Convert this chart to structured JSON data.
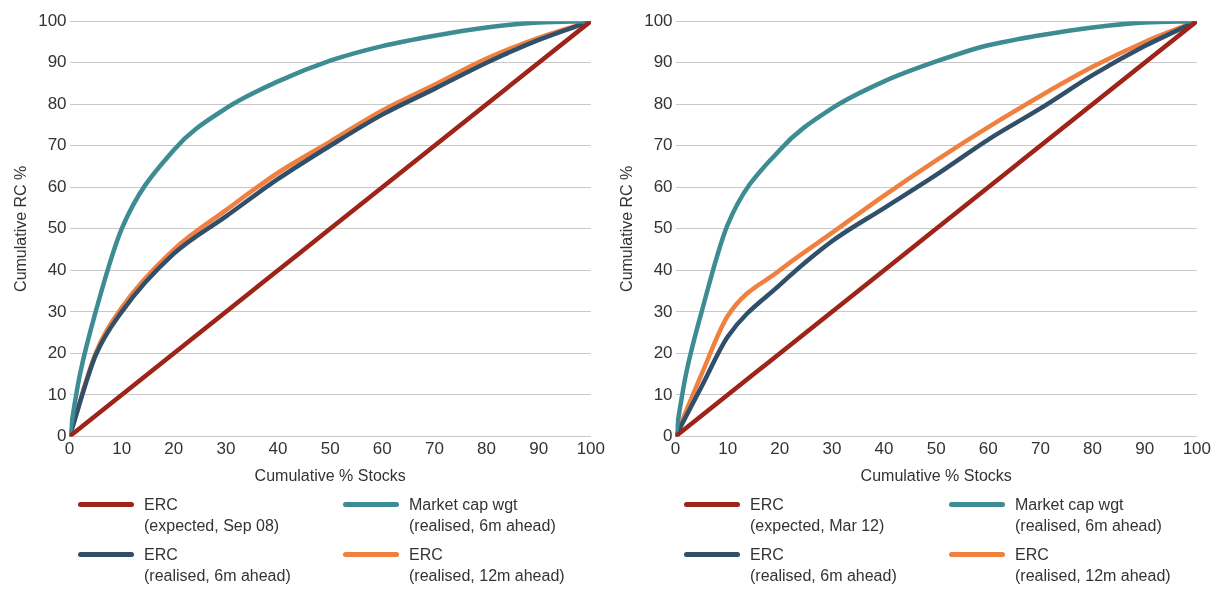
{
  "chart_data": [
    {
      "type": "line",
      "xlabel": "Cumulative % Stocks",
      "ylabel": "Cumulative RC %",
      "xlim": [
        0,
        100
      ],
      "ylim": [
        0,
        100
      ],
      "xticks": [
        0,
        10,
        20,
        30,
        40,
        50,
        60,
        70,
        80,
        90,
        100
      ],
      "yticks": [
        0,
        10,
        20,
        30,
        40,
        50,
        60,
        70,
        80,
        90,
        100
      ],
      "grid": "y",
      "legend": "bottom",
      "marker": "none",
      "line_style": "solid",
      "series": [
        {
          "name": "ERC\n(expected, Sep 08)",
          "color": "#9e2318",
          "x": [
            0,
            100
          ],
          "values": [
            0,
            100
          ]
        },
        {
          "name": "Market cap wgt\n(realised, 6m ahead)",
          "color": "#3e8c93",
          "x": [
            0,
            1,
            2,
            5,
            10,
            20,
            30,
            40,
            50,
            60,
            70,
            80,
            90,
            100
          ],
          "values": [
            0,
            8,
            15,
            30,
            50,
            69,
            79,
            85.5,
            90.5,
            94,
            96.5,
            98.5,
            99.7,
            100
          ]
        },
        {
          "name": "ERC\n(realised, 6m ahead)",
          "color": "#2f4f6b",
          "x": [
            0,
            5,
            10,
            20,
            30,
            40,
            50,
            60,
            70,
            80,
            90,
            100
          ],
          "values": [
            0,
            19.5,
            30,
            44,
            53,
            62,
            70,
            77.5,
            83.7,
            90,
            95.5,
            100
          ]
        },
        {
          "name": "ERC\n(realised, 12m ahead)",
          "color": "#f08040",
          "x": [
            0,
            5,
            10,
            20,
            30,
            40,
            50,
            60,
            70,
            80,
            90,
            100
          ],
          "values": [
            0,
            20,
            31,
            45,
            54.5,
            63.5,
            71,
            78.5,
            84.7,
            91,
            96,
            100
          ]
        }
      ]
    },
    {
      "type": "line",
      "xlabel": "Cumulative % Stocks",
      "ylabel": "Cumulative RC %",
      "xlim": [
        0,
        100
      ],
      "ylim": [
        0,
        100
      ],
      "xticks": [
        0,
        10,
        20,
        30,
        40,
        50,
        60,
        70,
        80,
        90,
        100
      ],
      "yticks": [
        0,
        10,
        20,
        30,
        40,
        50,
        60,
        70,
        80,
        90,
        100
      ],
      "grid": "y",
      "legend": "bottom",
      "marker": "none",
      "line_style": "solid",
      "series": [
        {
          "name": "ERC\n(expected, Mar 12)",
          "color": "#9e2318",
          "x": [
            0,
            100
          ],
          "values": [
            0,
            100
          ]
        },
        {
          "name": "Market cap wgt\n(realised, 6m ahead)",
          "color": "#3e8c93",
          "x": [
            0,
            1,
            2,
            5,
            10,
            20,
            30,
            40,
            50,
            60,
            70,
            80,
            90,
            100
          ],
          "values": [
            0,
            8,
            15,
            30,
            51,
            69,
            79,
            85.5,
            90.3,
            94.2,
            96.6,
            98.5,
            99.7,
            100
          ]
        },
        {
          "name": "ERC\n(realised, 6m ahead)",
          "color": "#2f4f6b",
          "x": [
            0,
            5,
            10,
            20,
            30,
            40,
            50,
            60,
            70,
            80,
            90,
            100
          ],
          "values": [
            0,
            12,
            24,
            36.5,
            47,
            55,
            63,
            71.5,
            79,
            87,
            94,
            100
          ]
        },
        {
          "name": "ERC\n(realised, 12m ahead)",
          "color": "#f08040",
          "x": [
            0,
            5,
            10,
            20,
            30,
            40,
            50,
            60,
            70,
            80,
            90,
            100
          ],
          "values": [
            0,
            15,
            29,
            40,
            49,
            58,
            66.5,
            74.5,
            82,
            89,
            95,
            100
          ]
        }
      ]
    }
  ]
}
